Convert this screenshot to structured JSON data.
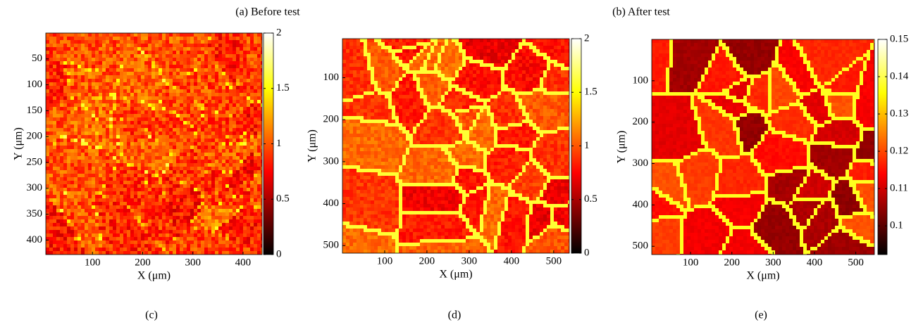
{
  "figure_titles": [
    "(a) Before test",
    "(b) After test"
  ],
  "chart_data": [
    {
      "type": "heatmap",
      "caption": "(c)",
      "x_label": "X (μm)",
      "y_label": "Y (μm)",
      "xlim": [
        7,
        438
      ],
      "ylim": [
        0,
        428
      ],
      "y_inverted": true,
      "xticks": [
        100,
        200,
        300,
        400
      ],
      "yticks": [
        50,
        100,
        150,
        200,
        250,
        300,
        350,
        400
      ],
      "colorbar": {
        "colormap": "hot",
        "lim": [
          0,
          2
        ],
        "ticks": [
          0,
          0.5,
          1,
          1.5,
          2
        ]
      }
    },
    {
      "type": "heatmap",
      "caption": "(d)",
      "x_label": "X (μm)",
      "y_label": "Y (μm)",
      "xlim": [
        0,
        537
      ],
      "ylim": [
        7,
        518
      ],
      "y_inverted": true,
      "xticks": [
        100,
        200,
        300,
        400,
        500
      ],
      "yticks": [
        100,
        200,
        300,
        400,
        500
      ],
      "colorbar": {
        "colormap": "hot",
        "lim": [
          0,
          2
        ],
        "ticks": [
          0,
          0.5,
          1,
          1.5,
          2
        ]
      }
    },
    {
      "type": "heatmap",
      "caption": "(e)",
      "x_label": "X (μm)",
      "y_label": "Y (μm)",
      "xlim": [
        6,
        545
      ],
      "ylim": [
        0,
        520
      ],
      "y_inverted": true,
      "xticks": [
        100,
        200,
        300,
        400,
        500
      ],
      "yticks": [
        100,
        200,
        300,
        400,
        500
      ],
      "colorbar": {
        "colormap": "hot",
        "lim": [
          0.0923,
          0.15
        ],
        "ticks": [
          0.1,
          0.11,
          0.12,
          0.13,
          0.14,
          0.15
        ]
      }
    }
  ]
}
